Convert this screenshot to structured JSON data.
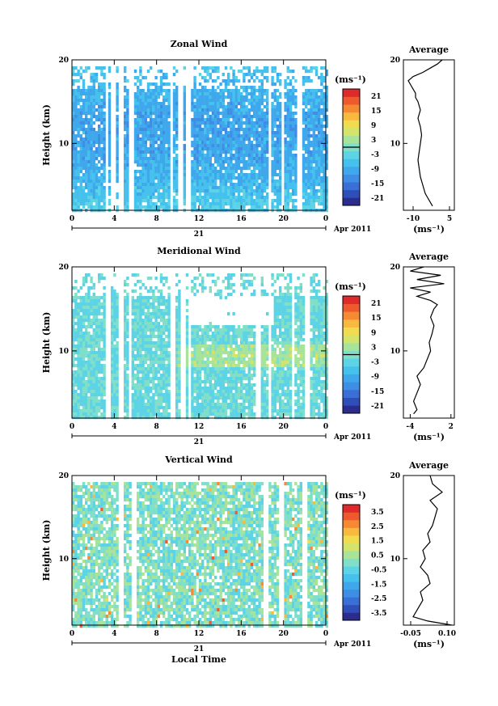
{
  "chart_data": [
    {
      "type": "heatmap",
      "title": "Zonal Wind",
      "ylabel": "Height (km)",
      "xlabel": "",
      "x_ticks": [
        "0",
        "4",
        "8",
        "12",
        "16",
        "20",
        "0"
      ],
      "y_ticks": [
        "10",
        "20"
      ],
      "ylim": [
        2,
        20
      ],
      "xlim": [
        0,
        24
      ],
      "day_label": "21",
      "date_label": "Apr 2011",
      "colorbar": {
        "unit": "(ms⁻¹)",
        "ticks": [
          "21",
          "15",
          "9",
          "3",
          "-3",
          "-9",
          "-15",
          "-21"
        ],
        "range": [
          -24,
          24
        ]
      },
      "field_mean": -7,
      "gaps_hours": [
        3.2,
        3.8,
        4.6,
        5.5,
        9.3,
        10.1,
        10.8,
        18.6,
        19.8,
        21.4
      ],
      "average": {
        "title": "Average",
        "xlabel": "(ms⁻¹)",
        "x_ticks": [
          "-10",
          "5"
        ],
        "xlim": [
          -14,
          7
        ],
        "y_ticks": [
          "10",
          "20"
        ],
        "height": [
          2.5,
          3,
          3.5,
          4,
          5,
          6,
          7,
          8,
          9,
          10,
          11,
          12,
          13,
          14,
          15,
          15.5,
          16,
          16.5,
          17,
          17.5,
          18,
          18.5,
          19,
          19.5,
          20
        ],
        "values": [
          -2,
          -3,
          -4,
          -5,
          -6,
          -7,
          -7.5,
          -8,
          -7.5,
          -7,
          -6.5,
          -7,
          -8,
          -7,
          -8,
          -9,
          -9,
          -10,
          -11,
          -12,
          -10,
          -6,
          -3,
          0,
          2
        ]
      }
    },
    {
      "type": "heatmap",
      "title": "Meridional Wind",
      "ylabel": "Height (km)",
      "xlabel": "",
      "x_ticks": [
        "0",
        "4",
        "8",
        "12",
        "16",
        "20",
        "0"
      ],
      "y_ticks": [
        "10",
        "20"
      ],
      "ylim": [
        2,
        20
      ],
      "xlim": [
        0,
        24
      ],
      "day_label": "21",
      "date_label": "Apr 2011",
      "colorbar": {
        "unit": "(ms⁻¹)",
        "ticks": [
          "21",
          "15",
          "9",
          "3",
          "-3",
          "-9",
          "-15",
          "-21"
        ],
        "range": [
          -24,
          24
        ]
      },
      "field_mean": -1,
      "gaps_hours": [
        3.3,
        4.5,
        5.4,
        9.5,
        10.3,
        11.0,
        17.5,
        18.6,
        20.8,
        22.2
      ],
      "average": {
        "title": "Average",
        "xlabel": "(ms⁻¹)",
        "x_ticks": [
          "-4",
          "2"
        ],
        "xlim": [
          -5,
          2.5
        ],
        "y_ticks": [
          "10",
          "20"
        ],
        "height": [
          2.5,
          3,
          4,
          5,
          6,
          7,
          8,
          9,
          10,
          11,
          12,
          13,
          14,
          15,
          15.5,
          16,
          16.5,
          17,
          17.5,
          18,
          18.5,
          19,
          19.5,
          20
        ],
        "values": [
          -3.5,
          -3,
          -3.5,
          -3,
          -2.5,
          -3,
          -2,
          -1.5,
          -1,
          -1.2,
          -0.8,
          -0.5,
          -1,
          -0.5,
          0,
          -1,
          -3,
          -1,
          -4,
          1,
          -3,
          0.5,
          -4,
          -2
        ]
      }
    },
    {
      "type": "heatmap",
      "title": "Vertical Wind",
      "ylabel": "Height (km)",
      "xlabel": "Local Time",
      "x_ticks": [
        "0",
        "4",
        "8",
        "12",
        "16",
        "20",
        "0"
      ],
      "y_ticks": [
        "10",
        "20"
      ],
      "ylim": [
        2,
        20
      ],
      "xlim": [
        0,
        24
      ],
      "day_label": "21",
      "date_label": "Apr 2011",
      "colorbar": {
        "unit": "(ms⁻¹)",
        "ticks": [
          "3.5",
          "2.5",
          "1.5",
          "0.5",
          "-0.5",
          "-1.5",
          "-2.5",
          "-3.5"
        ],
        "range": [
          -4,
          4
        ]
      },
      "field_mean": 0,
      "gaps_hours": [
        4.6,
        5.8,
        18.3,
        19.6,
        21.8
      ],
      "average": {
        "title": "Average",
        "xlabel": "(ms⁻¹)",
        "x_ticks": [
          "-0.05",
          "0.10"
        ],
        "xlim": [
          -0.08,
          0.13
        ],
        "y_ticks": [
          "10",
          "20"
        ],
        "height": [
          2,
          2.5,
          3,
          3.5,
          4,
          5,
          6,
          7,
          8,
          9,
          10,
          11,
          12,
          13,
          14,
          15,
          16,
          17,
          18,
          19,
          20
        ],
        "values": [
          0.12,
          0.02,
          -0.04,
          -0.03,
          -0.02,
          0.0,
          -0.01,
          0.03,
          0.02,
          -0.01,
          0.01,
          0.0,
          0.03,
          0.02,
          0.04,
          0.05,
          0.06,
          0.03,
          0.08,
          0.04,
          0.03
        ]
      }
    }
  ]
}
